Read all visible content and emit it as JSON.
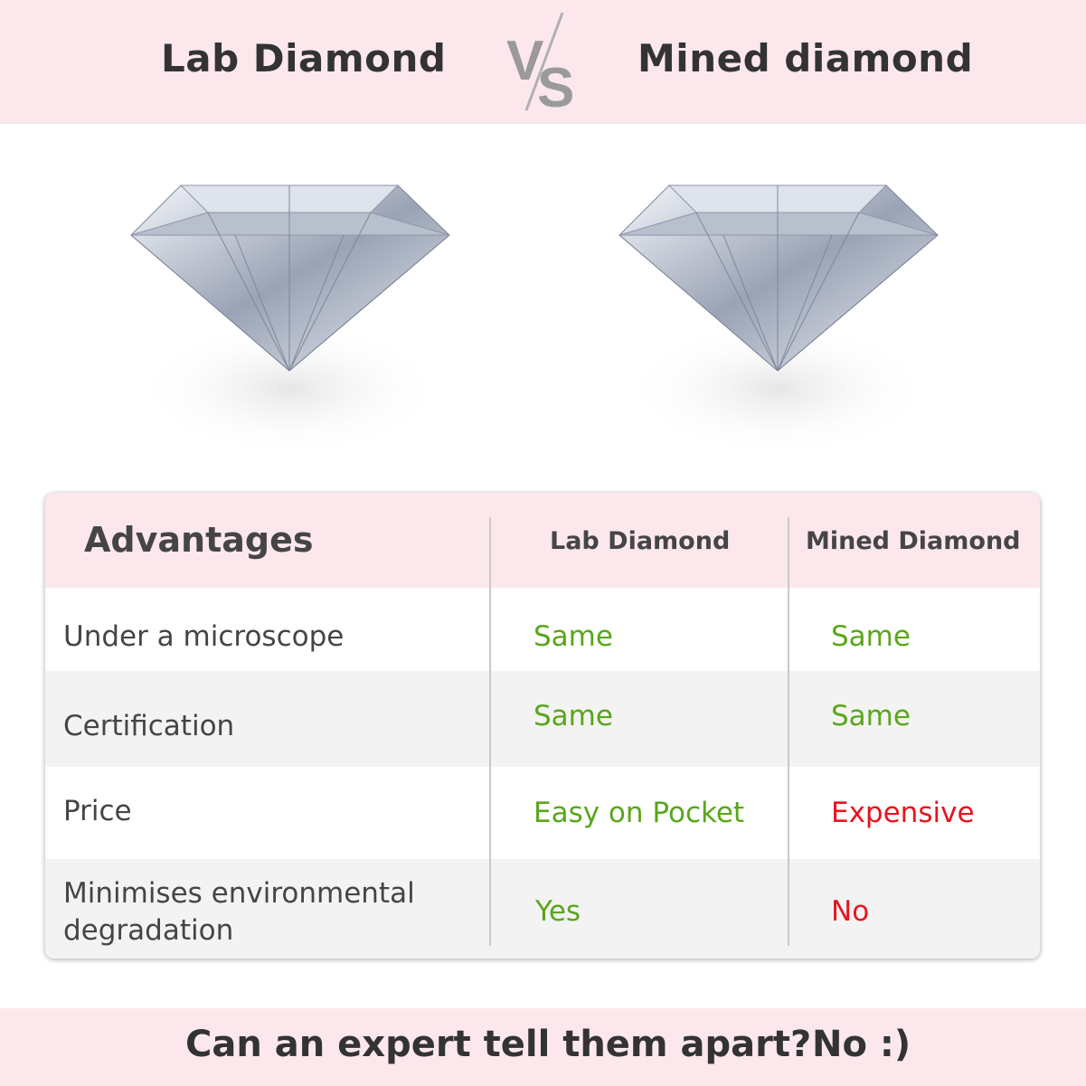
{
  "header": {
    "left_title": "Lab Diamond",
    "vs_logo": "VS",
    "right_title": "Mined diamond"
  },
  "images": {
    "left": "diamond-image",
    "right": "diamond-image"
  },
  "table": {
    "headers": [
      "Advantages",
      "Lab Diamond",
      "Mined Diamond"
    ],
    "rows": [
      {
        "label": "Under a microscope",
        "lab": "Same",
        "mined": "Same"
      },
      {
        "label": "Certification",
        "lab": "Same",
        "mined": "Same"
      },
      {
        "label": "Price",
        "lab": "Easy on Pocket",
        "mined": "Expensive"
      },
      {
        "label": "Minimises environmental degradation",
        "lab": "Yes",
        "mined": "No"
      }
    ]
  },
  "footer": {
    "question": "Can an expert tell them apart?",
    "answer": "No :)"
  },
  "colors": {
    "band": "#fce8ec",
    "positive": "#5aa61b",
    "negative": "#e8141e",
    "text": "#454545"
  }
}
